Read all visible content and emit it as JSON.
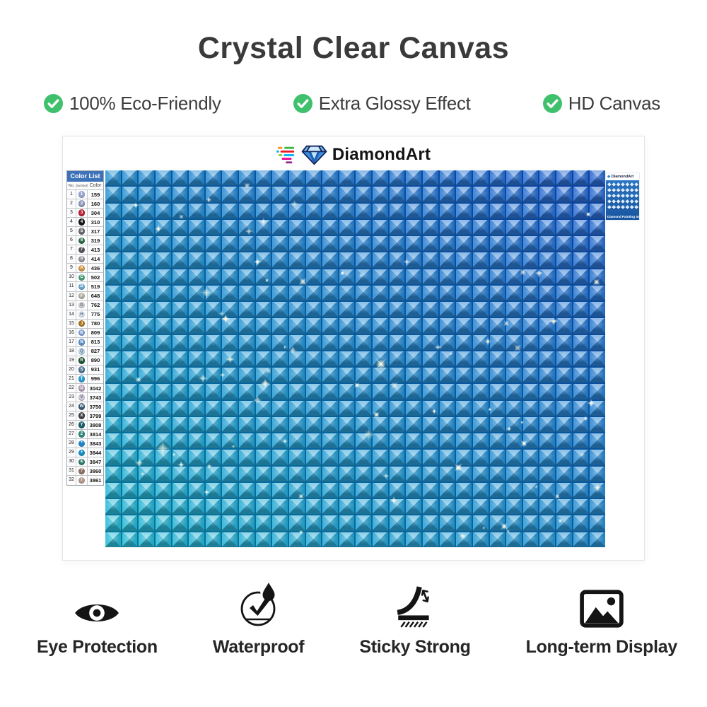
{
  "page_title": "Crystal Clear Canvas",
  "top_features": [
    {
      "label": "100% Eco-Friendly"
    },
    {
      "label": "Extra Glossy Effect"
    },
    {
      "label": "HD Canvas"
    }
  ],
  "brand": {
    "name": "DiamondArt"
  },
  "color_list": {
    "title": "Color List",
    "headers": [
      "No.",
      "Symbol",
      "Color"
    ],
    "rows": [
      [
        1,
        "1",
        "159",
        "#96a4ce",
        "#fff"
      ],
      [
        2,
        "2",
        "160",
        "#8d98bc",
        "#fff"
      ],
      [
        3,
        "3",
        "304",
        "#b81f33",
        "#fff"
      ],
      [
        4,
        "4",
        "310",
        "#161616",
        "#fff"
      ],
      [
        5,
        "5",
        "317",
        "#6c6b72",
        "#fff"
      ],
      [
        6,
        "6",
        "319",
        "#2e6c49",
        "#fff"
      ],
      [
        7,
        "7",
        "413",
        "#57565c",
        "#fff"
      ],
      [
        8,
        "8",
        "414",
        "#8f8f95",
        "#fff"
      ],
      [
        9,
        "A",
        "436",
        "#d09247",
        "#fff"
      ],
      [
        10,
        "C",
        "502",
        "#4f9d78",
        "#fff"
      ],
      [
        11,
        "D",
        "519",
        "#6ba6cd",
        "#fff"
      ],
      [
        12,
        "F",
        "648",
        "#b3ada0",
        "#fff"
      ],
      [
        13,
        "G",
        "762",
        "#cfcfd4",
        "#666"
      ],
      [
        14,
        "H",
        "775",
        "#d9e6f2",
        "#667"
      ],
      [
        15,
        "J",
        "780",
        "#a8721f",
        "#fff"
      ],
      [
        16,
        "K",
        "809",
        "#7fa0d8",
        "#fff"
      ],
      [
        17,
        "N",
        "813",
        "#5f93c8",
        "#fff"
      ],
      [
        18,
        "Q",
        "827",
        "#bed9ed",
        "#667"
      ],
      [
        19,
        "R",
        "890",
        "#1e5434",
        "#fff"
      ],
      [
        20,
        "S",
        "931",
        "#4e7492",
        "#fff"
      ],
      [
        21,
        "T",
        "996",
        "#2d9bd3",
        "#fff"
      ],
      [
        22,
        "U",
        "3042",
        "#b2a0b4",
        "#fff"
      ],
      [
        23,
        "V",
        "3743",
        "#d2c8d8",
        "#667"
      ],
      [
        24,
        "W",
        "3750",
        "#3a5a72",
        "#fff"
      ],
      [
        25,
        "X",
        "3799",
        "#414046",
        "#fff"
      ],
      [
        26,
        "Y",
        "3808",
        "#1d6069",
        "#fff"
      ],
      [
        27,
        "Z",
        "3814",
        "#2f8678",
        "#fff"
      ],
      [
        28,
        "*",
        "3843",
        "#1f87c9",
        "#fff"
      ],
      [
        29,
        "+",
        "3844",
        "#1690c5",
        "#fff"
      ],
      [
        30,
        "&",
        "3847",
        "#2e7b6b",
        "#fff"
      ],
      [
        31,
        "?",
        "3860",
        "#8d6f64",
        "#fff"
      ],
      [
        32,
        "/",
        "3861",
        "#b49a8f",
        "#fff"
      ]
    ]
  },
  "canvas": {
    "color_bottom_left": "#29bcd6",
    "color_top_right": "#2b69d1",
    "columns": 30,
    "rows": 23
  },
  "package": {
    "brand": "DiamondArt",
    "caption": "Diamond Painting Set"
  },
  "bottom_features": [
    {
      "label": "Eye Protection",
      "icon": "eye-icon"
    },
    {
      "label": "Waterproof",
      "icon": "waterproof-icon"
    },
    {
      "label": "Sticky Strong",
      "icon": "sticky-strong-icon"
    },
    {
      "label": "Long-term Display",
      "icon": "picture-icon"
    }
  ],
  "colors": {
    "check_green": "#3ec06d",
    "table_header_blue": "#3e72b8",
    "title_text": "#3a3a3a"
  }
}
